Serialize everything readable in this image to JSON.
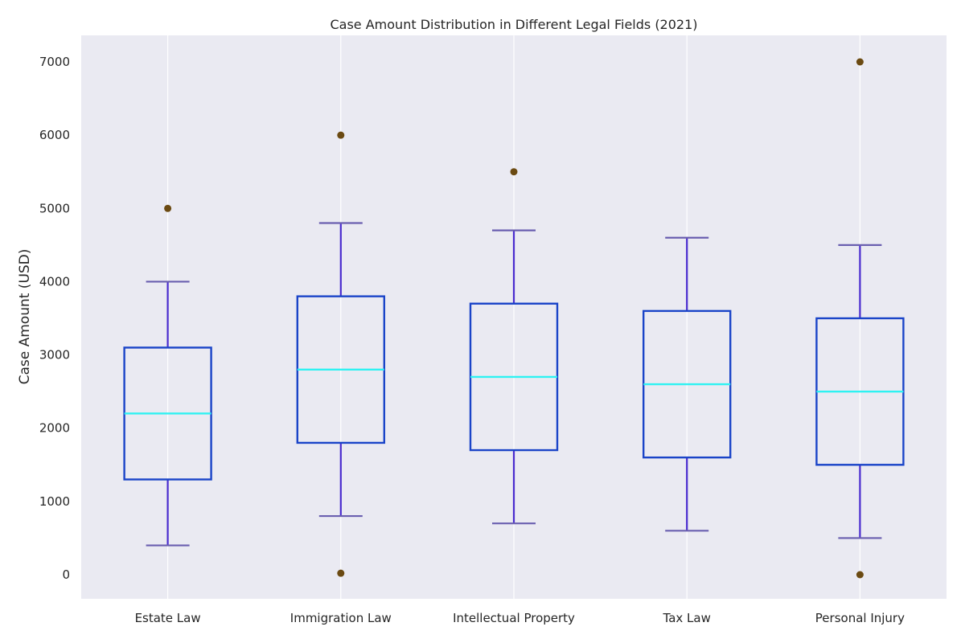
{
  "chart_data": {
    "type": "box",
    "title": "Case Amount Distribution in Different Legal Fields (2021)",
    "xlabel": "",
    "ylabel": "Case Amount (USD)",
    "ylim": [
      -350,
      7350
    ],
    "y_ticks": [
      "0",
      "1000",
      "2000",
      "3000",
      "4000",
      "5000",
      "6000",
      "7000"
    ],
    "grid": "vertical",
    "categories": [
      "Estate Law",
      "Immigration Law",
      "Intellectual Property",
      "Tax Law",
      "Personal Injury"
    ],
    "boxes": [
      {
        "category": "Estate Law",
        "whisker_low": 400,
        "q1": 1300,
        "median": 2200,
        "q3": 3100,
        "whisker_high": 4000,
        "outliers": [
          5000
        ]
      },
      {
        "category": "Immigration Law",
        "whisker_low": 800,
        "q1": 1800,
        "median": 2800,
        "q3": 3800,
        "whisker_high": 4800,
        "outliers": [
          6000,
          20
        ]
      },
      {
        "category": "Intellectual Property",
        "whisker_low": 700,
        "q1": 1700,
        "median": 2700,
        "q3": 3700,
        "whisker_high": 4700,
        "outliers": [
          5500
        ]
      },
      {
        "category": "Tax Law",
        "whisker_low": 600,
        "q1": 1600,
        "median": 2600,
        "q3": 3600,
        "whisker_high": 4600,
        "outliers": []
      },
      {
        "category": "Personal Injury",
        "whisker_low": 500,
        "q1": 1500,
        "median": 2500,
        "q3": 3500,
        "whisker_high": 4500,
        "outliers": [
          7000,
          0
        ]
      }
    ],
    "colors": {
      "plot_background": "#eaeaf2",
      "grid": "#ffffff",
      "box": "#1a44c8",
      "median": "#2ef2f2",
      "whisker": "#4a2ccf",
      "cap": "#6a5fb0",
      "outlier": "#6b4a12",
      "text": "#262626"
    }
  }
}
